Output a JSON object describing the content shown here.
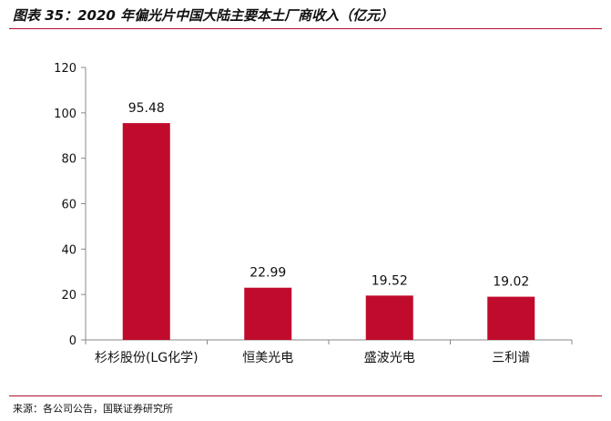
{
  "header": {
    "title": "图表 35：2020 年偏光片中国大陆主要本土厂商收入（亿元）"
  },
  "footer": {
    "source": "来源：各公司公告，国联证券研究所"
  },
  "colors": {
    "bar": "#c00b2c",
    "rule": "#b0122f",
    "axis": "#888888"
  },
  "chart_data": {
    "type": "bar",
    "categories": [
      "杉杉股份(LG化学)",
      "恒美光电",
      "盛波光电",
      "三利谱"
    ],
    "values": [
      95.48,
      22.99,
      19.52,
      19.02
    ],
    "data_labels": [
      "95.48",
      "22.99",
      "19.52",
      "19.02"
    ],
    "yticks": [
      "0",
      "20",
      "40",
      "60",
      "80",
      "100",
      "120"
    ],
    "ylim": [
      0,
      120
    ],
    "grid": false,
    "legend": "none"
  }
}
